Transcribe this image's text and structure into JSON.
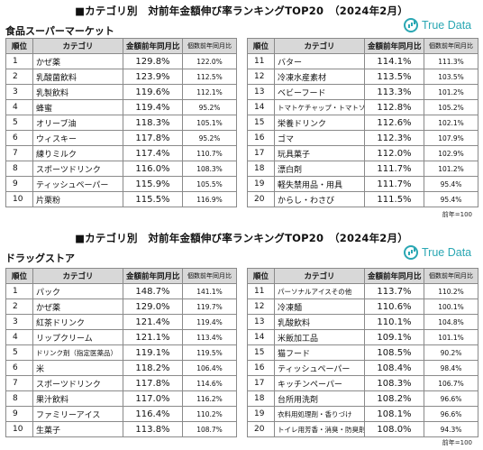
{
  "panels": [
    {
      "title": "■カテゴリ別　対前年金額伸び率ランキングTOP20　（2024年2月）",
      "category": "食品スーパーマーケット",
      "logo_text": "True Data",
      "headers": {
        "rank": "順位",
        "category": "カテゴリ",
        "yoy": "金額前年同月比",
        "index": "個数前年同月比"
      },
      "left_rows": [
        {
          "rank": "1",
          "name": "かぜ薬",
          "yoy": "129.8%",
          "index": "122.0%"
        },
        {
          "rank": "2",
          "name": "乳酸菌飲料",
          "yoy": "123.9%",
          "index": "112.5%"
        },
        {
          "rank": "3",
          "name": "乳製飲料",
          "yoy": "119.6%",
          "index": "112.1%"
        },
        {
          "rank": "4",
          "name": "蜂蜜",
          "yoy": "119.4%",
          "index": "95.2%"
        },
        {
          "rank": "5",
          "name": "オリーブ油",
          "yoy": "118.3%",
          "index": "105.1%"
        },
        {
          "rank": "6",
          "name": "ウィスキー",
          "yoy": "117.8%",
          "index": "95.2%"
        },
        {
          "rank": "7",
          "name": "練りミルク",
          "yoy": "117.4%",
          "index": "110.7%"
        },
        {
          "rank": "8",
          "name": "スポーツドリンク",
          "yoy": "116.0%",
          "index": "108.3%"
        },
        {
          "rank": "9",
          "name": "ティッシュペーパー",
          "yoy": "115.9%",
          "index": "105.5%"
        },
        {
          "rank": "10",
          "name": "片栗粉",
          "yoy": "115.5%",
          "index": "116.9%"
        }
      ],
      "right_rows": [
        {
          "rank": "11",
          "name": "バター",
          "yoy": "114.1%",
          "index": "111.3%"
        },
        {
          "rank": "12",
          "name": "冷凍水産素材",
          "yoy": "113.5%",
          "index": "103.5%"
        },
        {
          "rank": "13",
          "name": "ベビーフード",
          "yoy": "113.3%",
          "index": "101.2%"
        },
        {
          "rank": "14",
          "name": "トマトケチャップ・トマトソース",
          "yoy": "112.8%",
          "index": "105.2%"
        },
        {
          "rank": "15",
          "name": "栄養ドリンク",
          "yoy": "112.6%",
          "index": "102.1%"
        },
        {
          "rank": "16",
          "name": "ゴマ",
          "yoy": "112.3%",
          "index": "107.9%"
        },
        {
          "rank": "17",
          "name": "玩具菓子",
          "yoy": "112.0%",
          "index": "102.9%"
        },
        {
          "rank": "18",
          "name": "漂白剤",
          "yoy": "111.7%",
          "index": "101.2%"
        },
        {
          "rank": "19",
          "name": "軽失禁用品・用具",
          "yoy": "111.7%",
          "index": "95.4%"
        },
        {
          "rank": "20",
          "name": "からし・わさび",
          "yoy": "111.5%",
          "index": "95.4%"
        }
      ],
      "note": "前年=100"
    },
    {
      "title": "■カテゴリ別　対前年金額伸び率ランキングTOP20　（2024年2月）",
      "category": "ドラッグストア",
      "logo_text": "True Data",
      "headers": {
        "rank": "順位",
        "category": "カテゴリ",
        "yoy": "金額前年同月比",
        "index": "個数前年同月比"
      },
      "left_rows": [
        {
          "rank": "1",
          "name": "パック",
          "yoy": "148.7%",
          "index": "141.1%"
        },
        {
          "rank": "2",
          "name": "かぜ薬",
          "yoy": "129.0%",
          "index": "119.7%"
        },
        {
          "rank": "3",
          "name": "紅茶ドリンク",
          "yoy": "121.4%",
          "index": "119.4%"
        },
        {
          "rank": "4",
          "name": "リップクリーム",
          "yoy": "121.1%",
          "index": "113.4%"
        },
        {
          "rank": "5",
          "name": "ドリンク剤（指定医薬品）",
          "yoy": "119.1%",
          "index": "119.5%"
        },
        {
          "rank": "6",
          "name": "米",
          "yoy": "118.2%",
          "index": "106.4%"
        },
        {
          "rank": "7",
          "name": "スポーツドリンク",
          "yoy": "117.8%",
          "index": "114.6%"
        },
        {
          "rank": "8",
          "name": "果汁飲料",
          "yoy": "117.0%",
          "index": "116.2%"
        },
        {
          "rank": "9",
          "name": "ファミリーアイス",
          "yoy": "116.4%",
          "index": "110.2%"
        },
        {
          "rank": "10",
          "name": "生菓子",
          "yoy": "113.8%",
          "index": "108.7%"
        }
      ],
      "right_rows": [
        {
          "rank": "11",
          "name": "パーソナルアイスその他",
          "yoy": "113.7%",
          "index": "110.2%"
        },
        {
          "rank": "12",
          "name": "冷凍麺",
          "yoy": "110.6%",
          "index": "100.1%"
        },
        {
          "rank": "13",
          "name": "乳酸飲料",
          "yoy": "110.1%",
          "index": "104.8%"
        },
        {
          "rank": "14",
          "name": "米飯加工品",
          "yoy": "109.1%",
          "index": "101.1%"
        },
        {
          "rank": "15",
          "name": "猫フード",
          "yoy": "108.5%",
          "index": "90.2%"
        },
        {
          "rank": "16",
          "name": "ティッシュペーパー",
          "yoy": "108.4%",
          "index": "98.4%"
        },
        {
          "rank": "17",
          "name": "キッチンペーパー",
          "yoy": "108.3%",
          "index": "106.7%"
        },
        {
          "rank": "18",
          "name": "台所用洗剤",
          "yoy": "108.2%",
          "index": "96.6%"
        },
        {
          "rank": "19",
          "name": "衣料用処理剤・香りづけ",
          "yoy": "108.1%",
          "index": "96.6%"
        },
        {
          "rank": "20",
          "name": "トイレ用芳香・消臭・防臭剤",
          "yoy": "108.0%",
          "index": "94.3%"
        }
      ],
      "note": "前年=100"
    }
  ]
}
